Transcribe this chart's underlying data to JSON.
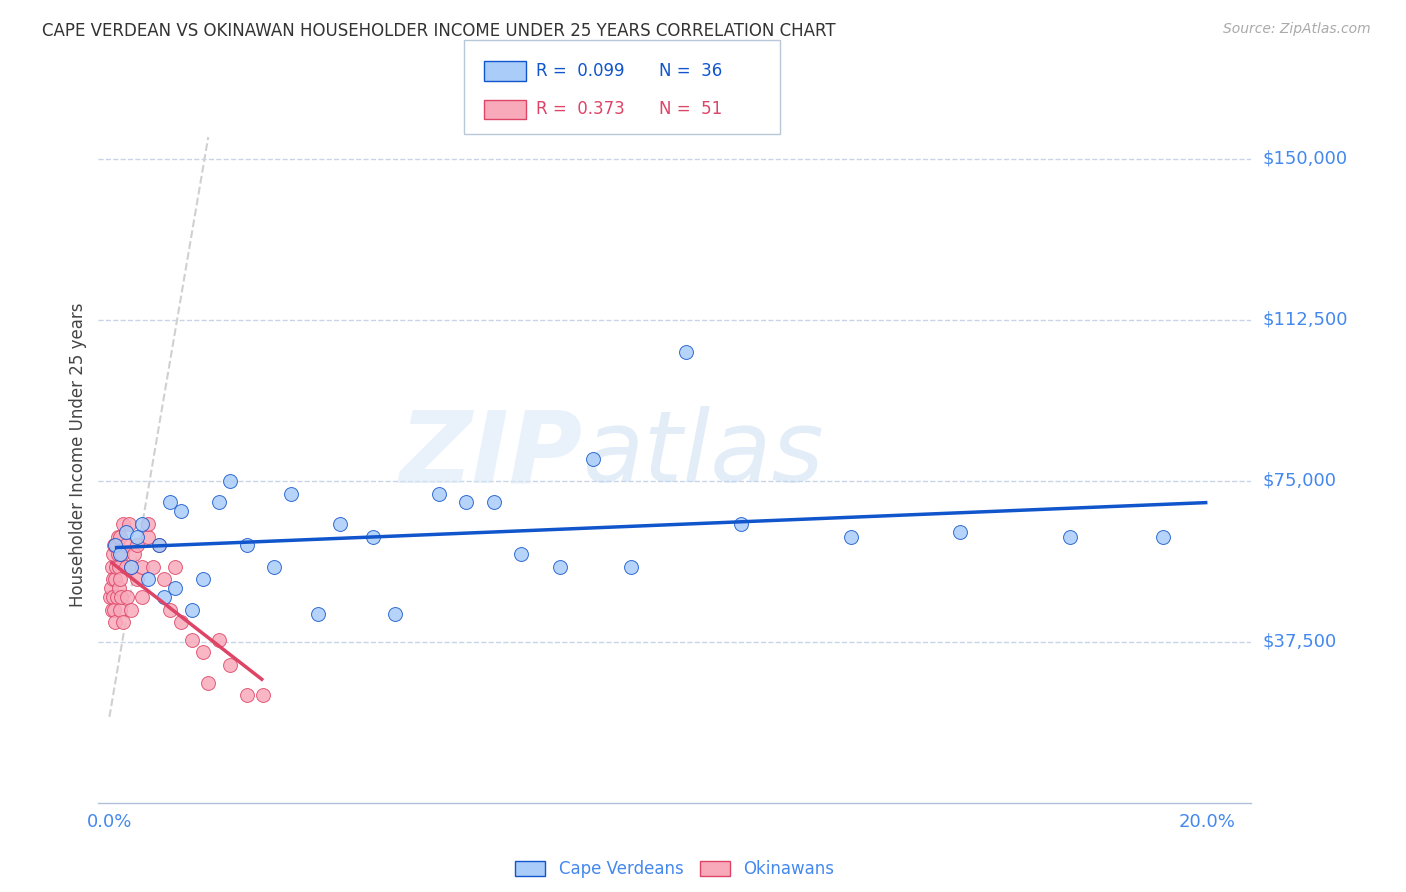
{
  "title": "CAPE VERDEAN VS OKINAWAN HOUSEHOLDER INCOME UNDER 25 YEARS CORRELATION CHART",
  "source": "Source: ZipAtlas.com",
  "ylabel": "Householder Income Under 25 years",
  "y_tick_values": [
    37500,
    75000,
    112500,
    150000
  ],
  "y_tick_labels": [
    "$37,500",
    "$75,000",
    "$112,500",
    "$150,000"
  ],
  "y_min": 0,
  "y_max": 162000,
  "x_min": -0.002,
  "x_max": 0.208,
  "watermark_zip": "ZIP",
  "watermark_atlas": "atlas",
  "legend_blue_R": "0.099",
  "legend_blue_N": "36",
  "legend_pink_R": "0.373",
  "legend_pink_N": "51",
  "cape_verdean_color": "#aaccf8",
  "okinawan_color": "#f8aabb",
  "trend_blue_color": "#1155cc",
  "trend_pink_color": "#dd4466",
  "ref_line_color": "#d0d0d0",
  "background_color": "#ffffff",
  "grid_color": "#c8d5e8",
  "title_color": "#333333",
  "axis_label_color": "#4488ee",
  "marker_size": 100,
  "cape_verdean_x": [
    0.001,
    0.002,
    0.003,
    0.004,
    0.005,
    0.006,
    0.007,
    0.009,
    0.01,
    0.011,
    0.012,
    0.013,
    0.015,
    0.017,
    0.02,
    0.022,
    0.025,
    0.03,
    0.033,
    0.038,
    0.042,
    0.048,
    0.052,
    0.06,
    0.065,
    0.07,
    0.075,
    0.082,
    0.088,
    0.095,
    0.105,
    0.115,
    0.135,
    0.155,
    0.175,
    0.192
  ],
  "cape_verdean_y": [
    60000,
    58000,
    63000,
    55000,
    62000,
    65000,
    52000,
    60000,
    48000,
    70000,
    50000,
    68000,
    45000,
    52000,
    70000,
    75000,
    60000,
    55000,
    72000,
    44000,
    65000,
    62000,
    44000,
    72000,
    70000,
    70000,
    58000,
    55000,
    80000,
    55000,
    105000,
    65000,
    62000,
    63000,
    62000,
    62000
  ],
  "okinawan_x": [
    0.0002,
    0.0003,
    0.0004,
    0.0005,
    0.0006,
    0.0007,
    0.0007,
    0.0008,
    0.0009,
    0.001,
    0.001,
    0.0012,
    0.0013,
    0.0014,
    0.0015,
    0.0016,
    0.0017,
    0.0018,
    0.0019,
    0.002,
    0.002,
    0.0022,
    0.0023,
    0.0024,
    0.0025,
    0.003,
    0.003,
    0.0032,
    0.0035,
    0.004,
    0.004,
    0.0045,
    0.005,
    0.005,
    0.006,
    0.006,
    0.007,
    0.007,
    0.008,
    0.009,
    0.01,
    0.011,
    0.012,
    0.013,
    0.015,
    0.017,
    0.018,
    0.02,
    0.022,
    0.025,
    0.028
  ],
  "okinawan_y": [
    48000,
    50000,
    45000,
    55000,
    52000,
    48000,
    58000,
    45000,
    60000,
    42000,
    52000,
    55000,
    48000,
    60000,
    62000,
    58000,
    50000,
    55000,
    45000,
    52000,
    62000,
    48000,
    58000,
    65000,
    42000,
    55000,
    60000,
    48000,
    65000,
    45000,
    55000,
    58000,
    52000,
    60000,
    48000,
    55000,
    62000,
    65000,
    55000,
    60000,
    52000,
    45000,
    55000,
    42000,
    38000,
    35000,
    28000,
    38000,
    32000,
    25000,
    25000
  ],
  "ref_line_x": [
    0.0,
    0.018
  ],
  "ref_line_y": [
    20000,
    155000
  ]
}
